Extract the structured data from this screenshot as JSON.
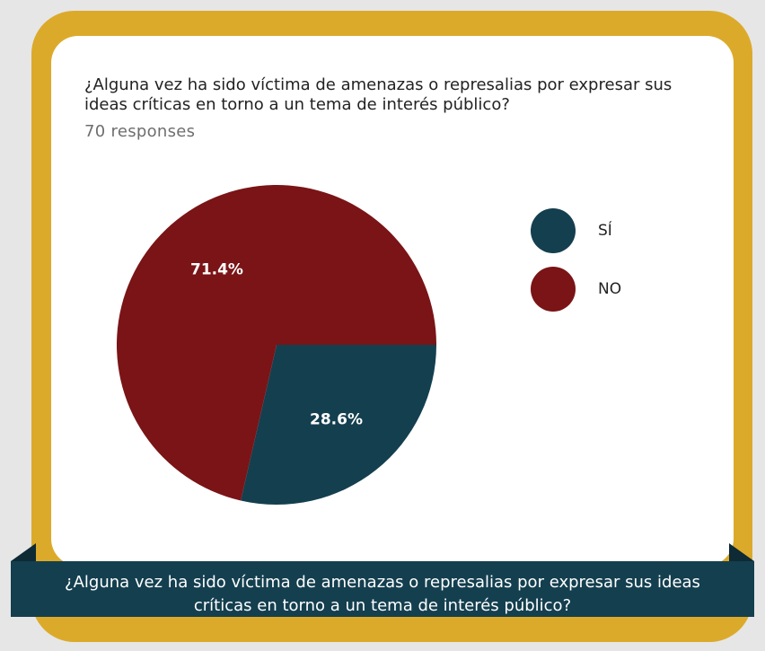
{
  "chart_data": {
    "type": "pie",
    "title": "¿Alguna vez ha sido víctima de amenazas o represalias por expresar sus ideas críticas en torno a un tema de interés público?",
    "subtitle": "70 responses",
    "categories": [
      "SÍ",
      "NO"
    ],
    "values": [
      28.6,
      71.4
    ],
    "value_labels": [
      "28.6%",
      "71.4%"
    ],
    "colors": [
      "#143f4f",
      "#7a1416"
    ]
  },
  "banner": {
    "text": "¿Alguna vez ha sido víctima de amenazas o represalias por expresar sus ideas críticas en torno a un tema de interés público?"
  }
}
